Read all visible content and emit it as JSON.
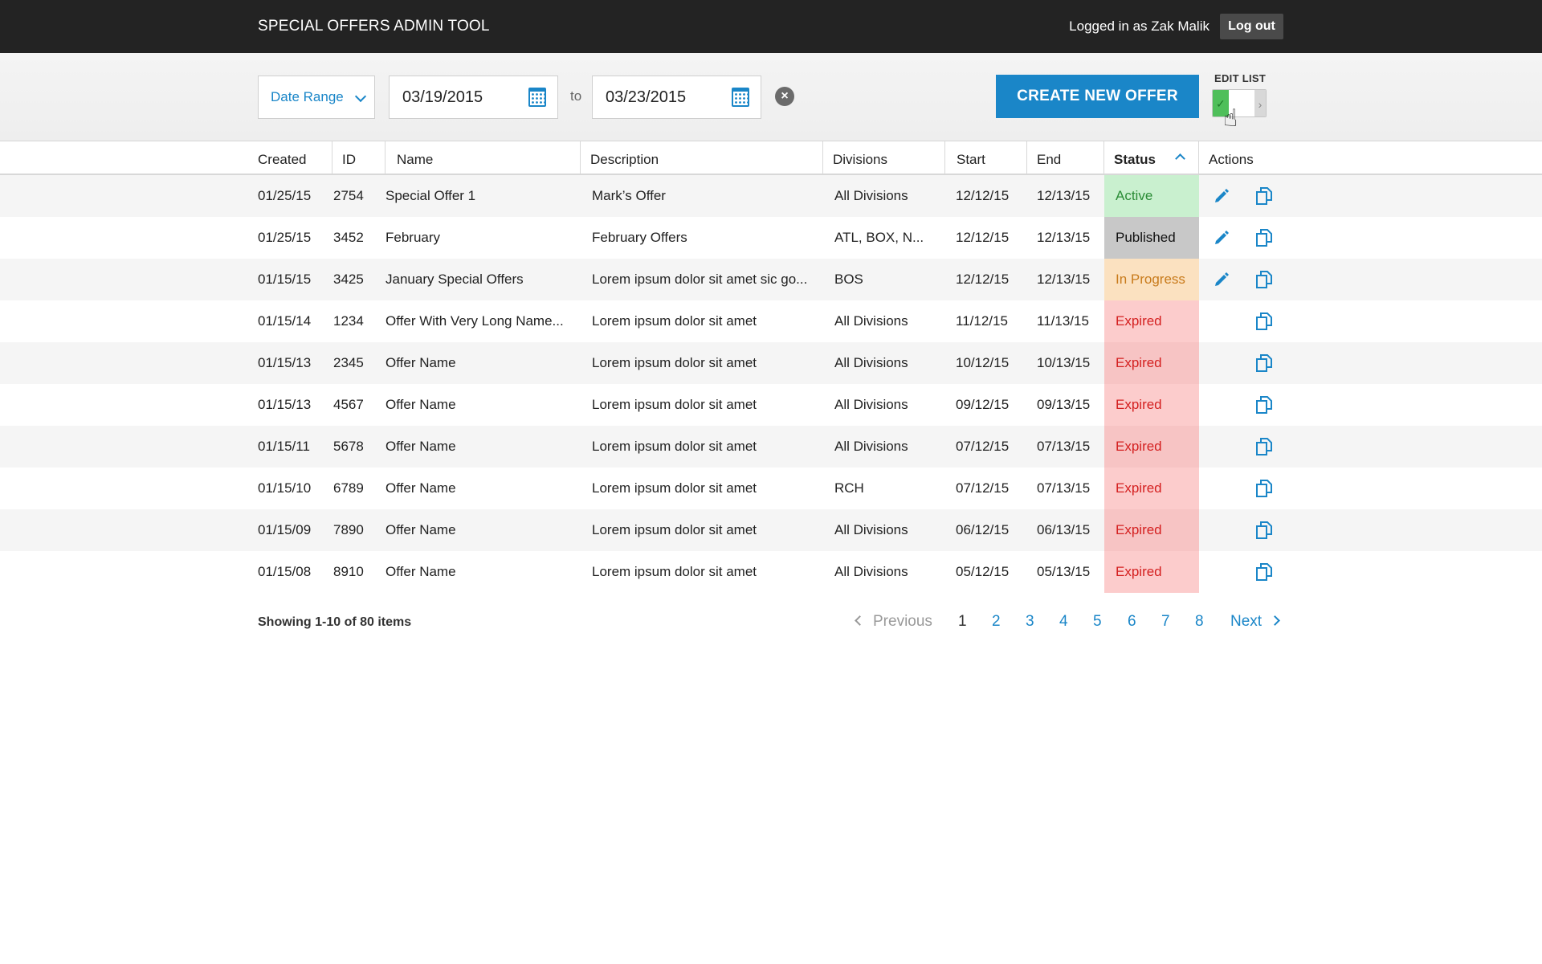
{
  "header": {
    "app_title": "SPECIAL OFFERS ADMIN TOOL",
    "login_text": "Logged in as Zak Malik",
    "logout_label": "Log out"
  },
  "filters": {
    "range_select": "Date Range",
    "date_from": "03/19/2015",
    "to_label": "to",
    "date_to": "03/23/2015",
    "create_label": "CREATE NEW OFFER",
    "edit_list_label": "EDIT LIST",
    "edit_list_on": true
  },
  "table": {
    "columns": [
      "Created",
      "ID",
      "Name",
      "Description",
      "Divisions",
      "Start",
      "End",
      "Status",
      "Actions"
    ],
    "sorted_column": "Status",
    "rows": [
      {
        "created": "01/25/15",
        "id": "2754",
        "name": "Special Offer 1",
        "description": "Mark’s Offer",
        "divisions": "All Divisions",
        "start": "12/12/15",
        "end": "12/13/15",
        "status": "Active",
        "editable": true
      },
      {
        "created": "01/25/15",
        "id": "3452",
        "name": "February",
        "description": "February Offers",
        "divisions": "ATL, BOX, N...",
        "start": "12/12/15",
        "end": "12/13/15",
        "status": "Published",
        "editable": true
      },
      {
        "created": "01/15/15",
        "id": "3425",
        "name": "January Special Offers",
        "description": "Lorem ipsum dolor sit amet sic go...",
        "divisions": "BOS",
        "start": "12/12/15",
        "end": "12/13/15",
        "status": "In Progress",
        "editable": true
      },
      {
        "created": "01/15/14",
        "id": "1234",
        "name": "Offer With Very Long Name...",
        "description": "Lorem ipsum dolor sit amet",
        "divisions": "All Divisions",
        "start": "11/12/15",
        "end": "11/13/15",
        "status": "Expired",
        "editable": false
      },
      {
        "created": "01/15/13",
        "id": "2345",
        "name": "Offer Name",
        "description": "Lorem ipsum dolor sit amet",
        "divisions": "All Divisions",
        "start": "10/12/15",
        "end": "10/13/15",
        "status": "Expired",
        "editable": false
      },
      {
        "created": "01/15/13",
        "id": "4567",
        "name": "Offer Name",
        "description": "Lorem ipsum dolor sit amet",
        "divisions": "All Divisions",
        "start": "09/12/15",
        "end": "09/13/15",
        "status": "Expired",
        "editable": false
      },
      {
        "created": "01/15/11",
        "id": "5678",
        "name": "Offer Name",
        "description": "Lorem ipsum dolor sit amet",
        "divisions": "All Divisions",
        "start": "07/12/15",
        "end": "07/13/15",
        "status": "Expired",
        "editable": false
      },
      {
        "created": "01/15/10",
        "id": "6789",
        "name": "Offer Name",
        "description": "Lorem ipsum dolor sit amet",
        "divisions": "RCH",
        "start": "07/12/15",
        "end": "07/13/15",
        "status": "Expired",
        "editable": false
      },
      {
        "created": "01/15/09",
        "id": "7890",
        "name": "Offer Name",
        "description": "Lorem ipsum dolor sit amet",
        "divisions": "All Divisions",
        "start": "06/12/15",
        "end": "06/13/15",
        "status": "Expired",
        "editable": false
      },
      {
        "created": "01/15/08",
        "id": "8910",
        "name": "Offer Name",
        "description": "Lorem ipsum dolor sit amet",
        "divisions": "All Divisions",
        "start": "05/12/15",
        "end": "05/13/15",
        "status": "Expired",
        "editable": false
      }
    ]
  },
  "pagination": {
    "showing_text": "Showing 1-10 of 80 items",
    "previous_label": "Previous",
    "pages": [
      "1",
      "2",
      "3",
      "4",
      "5",
      "6",
      "7",
      "8"
    ],
    "current_page": "1",
    "next_label": "Next"
  },
  "icons": {
    "calendar": "calendar-icon",
    "clear": "clear-icon",
    "edit": "pencil-icon",
    "copy": "copy-icon",
    "sort": "chevron-up-icon"
  },
  "colors": {
    "accent": "#1a86c8",
    "topbar": "#232323",
    "active_bg": "#c9f0cf",
    "published_bg": "#c8c8c8",
    "in_progress_bg": "#fbe1c0",
    "expired_bg": "#fccccc"
  }
}
